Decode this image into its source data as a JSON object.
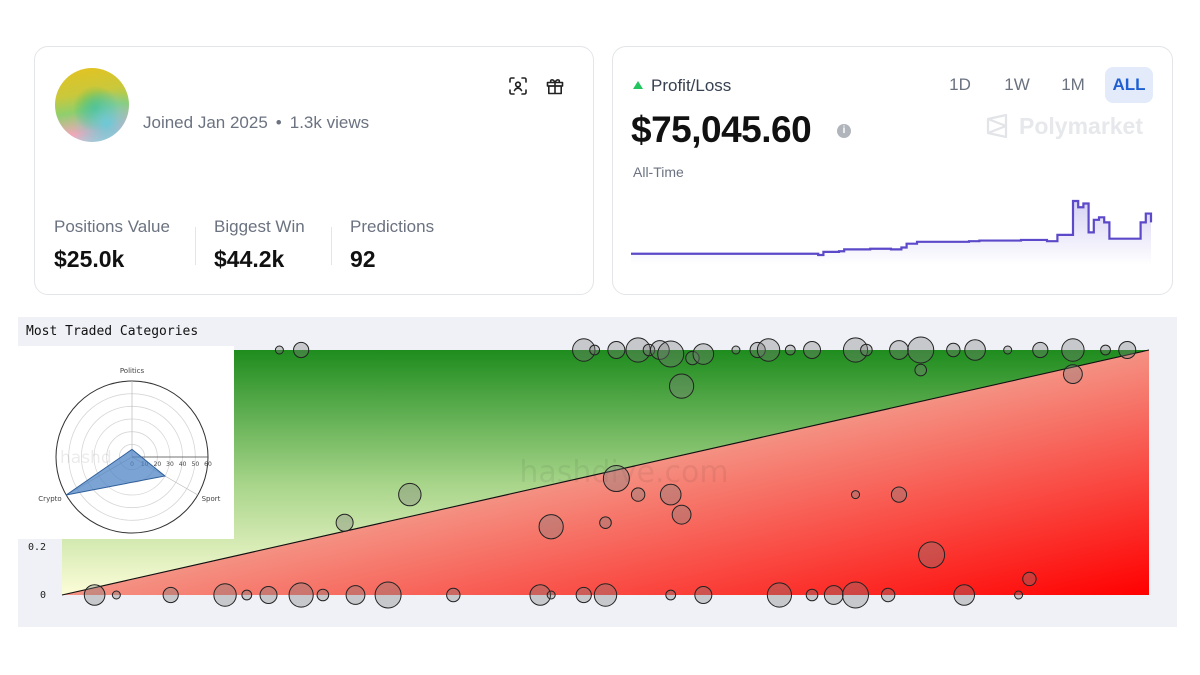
{
  "profile": {
    "joined": "Joined Jan 2025",
    "views": "1.3k views",
    "stats": [
      {
        "label": "Positions Value",
        "value": "$25.0k"
      },
      {
        "label": "Biggest Win",
        "value": "$44.2k"
      },
      {
        "label": "Predictions",
        "value": "92"
      }
    ],
    "icons": [
      "scan-face-icon",
      "gift-icon"
    ]
  },
  "pnl": {
    "label": "Profit/Loss",
    "value": "$75,045.60",
    "period": "All-Time",
    "ranges": [
      "1D",
      "1W",
      "1M",
      "ALL"
    ],
    "active_range": "ALL",
    "brand": "Polymarket",
    "line_color": "#5b49c9"
  },
  "traded": {
    "title": "Most Traded Categories",
    "watermark": "hashdive.com",
    "y_ticks": [
      "0.2",
      "0"
    ],
    "radar": {
      "axes": [
        "Politics",
        "Sport",
        "Crypto"
      ],
      "ticks": [
        "0",
        "10",
        "20",
        "30",
        "40",
        "50",
        "60"
      ],
      "watermark": "hashd"
    }
  },
  "chart_data": [
    {
      "type": "line",
      "title": "Profit/Loss",
      "x_range": [
        0,
        100
      ],
      "x": [
        0,
        35,
        36,
        37,
        40,
        41,
        45,
        46,
        47,
        50,
        52,
        53,
        55,
        55,
        58,
        65,
        67,
        70,
        75,
        78,
        80,
        82,
        85,
        86,
        87,
        88,
        89,
        90,
        91,
        92,
        93,
        94,
        95,
        96,
        97,
        98,
        99,
        100
      ],
      "values": [
        3000,
        3000,
        2000,
        4500,
        5000,
        6500,
        6500,
        7000,
        7000,
        6500,
        8000,
        11000,
        11000,
        12500,
        12500,
        13000,
        13500,
        13500,
        14000,
        14000,
        13000,
        18000,
        45000,
        40000,
        43000,
        20000,
        30000,
        32000,
        28000,
        15000,
        15000,
        15000,
        15000,
        15000,
        15000,
        28000,
        35000,
        28000
      ]
    },
    {
      "type": "scatter",
      "title": "Most Traded Categories",
      "yticks": [
        "0.2",
        "0"
      ],
      "points": [
        {
          "x": 0.2,
          "y": 0.61
        },
        {
          "x": 0.22,
          "y": 0.61
        },
        {
          "x": 0.48,
          "y": 0.61
        },
        {
          "x": 0.49,
          "y": 0.61
        },
        {
          "x": 0.51,
          "y": 0.61
        },
        {
          "x": 0.53,
          "y": 0.61
        },
        {
          "x": 0.54,
          "y": 0.61
        },
        {
          "x": 0.55,
          "y": 0.61
        },
        {
          "x": 0.56,
          "y": 0.6
        },
        {
          "x": 0.58,
          "y": 0.59
        },
        {
          "x": 0.59,
          "y": 0.6
        },
        {
          "x": 0.62,
          "y": 0.61
        },
        {
          "x": 0.64,
          "y": 0.61
        },
        {
          "x": 0.65,
          "y": 0.61
        },
        {
          "x": 0.67,
          "y": 0.61
        },
        {
          "x": 0.69,
          "y": 0.61
        },
        {
          "x": 0.73,
          "y": 0.61
        },
        {
          "x": 0.74,
          "y": 0.61
        },
        {
          "x": 0.77,
          "y": 0.61
        },
        {
          "x": 0.79,
          "y": 0.61
        },
        {
          "x": 0.82,
          "y": 0.61
        },
        {
          "x": 0.84,
          "y": 0.61
        },
        {
          "x": 0.87,
          "y": 0.61
        },
        {
          "x": 0.9,
          "y": 0.61
        },
        {
          "x": 0.93,
          "y": 0.61
        },
        {
          "x": 0.96,
          "y": 0.61
        },
        {
          "x": 0.98,
          "y": 0.61
        },
        {
          "x": 0.57,
          "y": 0.52
        },
        {
          "x": 0.79,
          "y": 0.56
        },
        {
          "x": 0.93,
          "y": 0.55
        },
        {
          "x": 0.51,
          "y": 0.29
        },
        {
          "x": 0.53,
          "y": 0.25
        },
        {
          "x": 0.56,
          "y": 0.25
        },
        {
          "x": 0.73,
          "y": 0.25
        },
        {
          "x": 0.77,
          "y": 0.25
        },
        {
          "x": 0.32,
          "y": 0.25
        },
        {
          "x": 0.12,
          "y": 0.24
        },
        {
          "x": 0.26,
          "y": 0.18
        },
        {
          "x": 0.45,
          "y": 0.17
        },
        {
          "x": 0.5,
          "y": 0.18
        },
        {
          "x": 0.57,
          "y": 0.2
        },
        {
          "x": 0.8,
          "y": 0.1
        },
        {
          "x": 0.89,
          "y": 0.04
        },
        {
          "x": 0.03,
          "y": 0.0
        },
        {
          "x": 0.05,
          "y": 0.0
        },
        {
          "x": 0.1,
          "y": 0.0
        },
        {
          "x": 0.15,
          "y": 0.0
        },
        {
          "x": 0.17,
          "y": 0.0
        },
        {
          "x": 0.19,
          "y": 0.0
        },
        {
          "x": 0.22,
          "y": 0.0
        },
        {
          "x": 0.24,
          "y": 0.0
        },
        {
          "x": 0.27,
          "y": 0.0
        },
        {
          "x": 0.3,
          "y": 0.0
        },
        {
          "x": 0.36,
          "y": 0.0
        },
        {
          "x": 0.44,
          "y": 0.0
        },
        {
          "x": 0.45,
          "y": 0.0
        },
        {
          "x": 0.48,
          "y": 0.0
        },
        {
          "x": 0.5,
          "y": 0.0
        },
        {
          "x": 0.56,
          "y": 0.0
        },
        {
          "x": 0.59,
          "y": 0.0
        },
        {
          "x": 0.66,
          "y": 0.0
        },
        {
          "x": 0.69,
          "y": 0.0
        },
        {
          "x": 0.71,
          "y": 0.0
        },
        {
          "x": 0.73,
          "y": 0.0
        },
        {
          "x": 0.76,
          "y": 0.0
        },
        {
          "x": 0.83,
          "y": 0.0
        },
        {
          "x": 0.88,
          "y": 0.0
        }
      ]
    },
    {
      "type": "radar",
      "axes": [
        "Politics",
        "Sport",
        "Crypto"
      ],
      "values": [
        6,
        30,
        60
      ],
      "rmax": 60,
      "color": "#4f86c6"
    }
  ]
}
